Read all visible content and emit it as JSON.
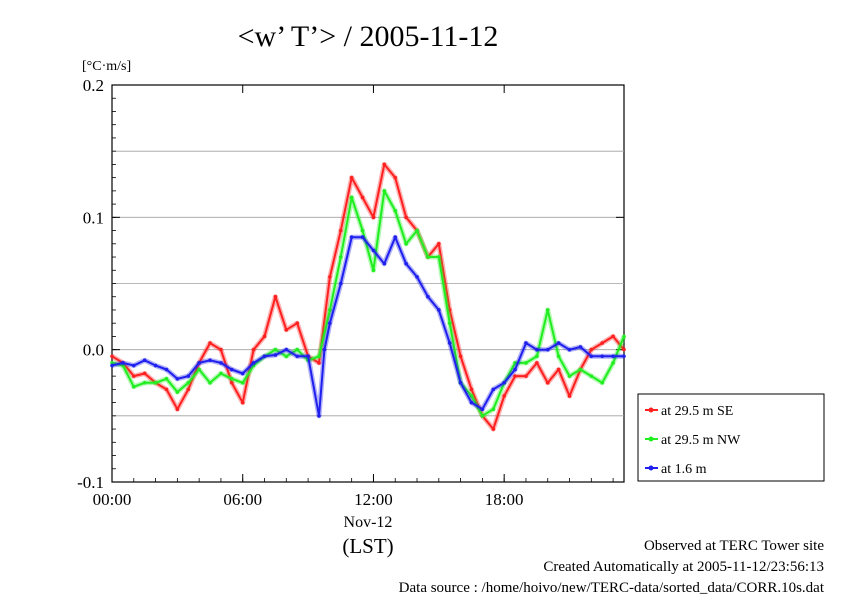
{
  "chart_data": {
    "type": "line",
    "title": "<w’ T’> / 2005-11-12",
    "ylabel": "[°C·m/s]",
    "xlabel": "(LST)",
    "x_date_label": "Nov-12",
    "ylim": [
      -0.1,
      0.2
    ],
    "xlim_hours": [
      0,
      23.5
    ],
    "y_ticks": [
      "-0.1",
      "0.0",
      "0.1",
      "0.2"
    ],
    "y_tick_values": [
      -0.1,
      0.0,
      0.1,
      0.2
    ],
    "x_ticks": [
      "00:00",
      "06:00",
      "12:00",
      "18:00"
    ],
    "x_tick_values": [
      0,
      6,
      12,
      18
    ],
    "grid": "horizontal",
    "legend_position": "bottom-right, outside plot",
    "series": [
      {
        "name": "at 29.5 m SE",
        "color": "#ff2020",
        "x": [
          0,
          0.5,
          1,
          1.5,
          2,
          2.5,
          3,
          3.5,
          4,
          4.5,
          5,
          5.5,
          6,
          6.5,
          7,
          7.5,
          8,
          8.5,
          9,
          9.5,
          10,
          10.5,
          11,
          11.5,
          12,
          12.5,
          13,
          13.5,
          14,
          14.5,
          15,
          15.5,
          16,
          16.5,
          17,
          17.5,
          18,
          18.5,
          19,
          19.5,
          20,
          20.5,
          21,
          21.5,
          22,
          22.5,
          23,
          23.5
        ],
        "y": [
          -0.005,
          -0.01,
          -0.02,
          -0.018,
          -0.025,
          -0.03,
          -0.045,
          -0.03,
          -0.01,
          0.005,
          0.0,
          -0.025,
          -0.04,
          0.0,
          0.01,
          0.04,
          0.015,
          0.02,
          -0.005,
          -0.01,
          0.055,
          0.09,
          0.13,
          0.115,
          0.1,
          0.14,
          0.13,
          0.1,
          0.09,
          0.07,
          0.08,
          0.03,
          -0.005,
          -0.03,
          -0.05,
          -0.06,
          -0.035,
          -0.02,
          -0.02,
          -0.01,
          -0.025,
          -0.015,
          -0.035,
          -0.015,
          0.0,
          0.005,
          0.01,
          0.0
        ]
      },
      {
        "name": "at 29.5 m NW",
        "color": "#20ee20",
        "x": [
          0,
          0.5,
          1,
          1.5,
          2,
          2.5,
          3,
          3.5,
          4,
          4.5,
          5,
          5.5,
          6,
          6.5,
          7,
          7.5,
          8,
          8.5,
          9,
          9.5,
          10,
          10.5,
          11,
          11.5,
          12,
          12.5,
          13,
          13.5,
          14,
          14.5,
          15,
          15.5,
          16,
          16.5,
          17,
          17.5,
          18,
          18.5,
          19,
          19.5,
          20,
          20.5,
          21,
          21.5,
          22,
          22.5,
          23,
          23.5
        ],
        "y": [
          -0.01,
          -0.012,
          -0.028,
          -0.025,
          -0.025,
          -0.022,
          -0.032,
          -0.025,
          -0.015,
          -0.025,
          -0.018,
          -0.022,
          -0.025,
          -0.012,
          -0.005,
          0.0,
          -0.005,
          0.0,
          -0.008,
          -0.005,
          0.03,
          0.07,
          0.115,
          0.09,
          0.06,
          0.12,
          0.105,
          0.08,
          0.09,
          0.07,
          0.07,
          0.02,
          -0.025,
          -0.035,
          -0.05,
          -0.045,
          -0.025,
          -0.01,
          -0.01,
          -0.005,
          0.03,
          -0.005,
          -0.02,
          -0.015,
          -0.02,
          -0.025,
          -0.01,
          0.01
        ]
      },
      {
        "name": "at 1.6 m",
        "color": "#2020ee",
        "x": [
          0,
          0.5,
          1,
          1.5,
          2,
          2.5,
          3,
          3.5,
          4,
          4.5,
          5,
          5.5,
          6,
          6.5,
          7,
          7.5,
          8,
          8.5,
          9,
          9.5,
          9.75,
          10,
          10.5,
          11,
          11.5,
          12,
          12.5,
          13,
          13.5,
          14,
          14.5,
          15,
          15.5,
          16,
          16.5,
          17,
          17.5,
          18,
          18.5,
          19,
          19.5,
          20,
          20.5,
          21,
          21.5,
          22,
          22.5,
          23,
          23.5
        ],
        "y": [
          -0.012,
          -0.01,
          -0.012,
          -0.008,
          -0.012,
          -0.015,
          -0.022,
          -0.02,
          -0.01,
          -0.008,
          -0.01,
          -0.015,
          -0.018,
          -0.01,
          -0.005,
          -0.004,
          0.0,
          -0.005,
          -0.005,
          -0.05,
          0.0,
          0.02,
          0.05,
          0.085,
          0.085,
          0.075,
          0.065,
          0.085,
          0.065,
          0.055,
          0.04,
          0.03,
          0.005,
          -0.025,
          -0.04,
          -0.045,
          -0.03,
          -0.025,
          -0.015,
          0.005,
          0.0,
          0.0,
          0.005,
          0.0,
          0.002,
          -0.005,
          -0.005,
          -0.005,
          -0.005
        ]
      }
    ]
  },
  "footer": {
    "line1": "Observed at TERC Tower site",
    "line2": "Created Automatically at 2005-11-12/23:56:13",
    "line3": "Data source : /home/hoivo/new/TERC-data/sorted_data/CORR.10s.dat"
  }
}
